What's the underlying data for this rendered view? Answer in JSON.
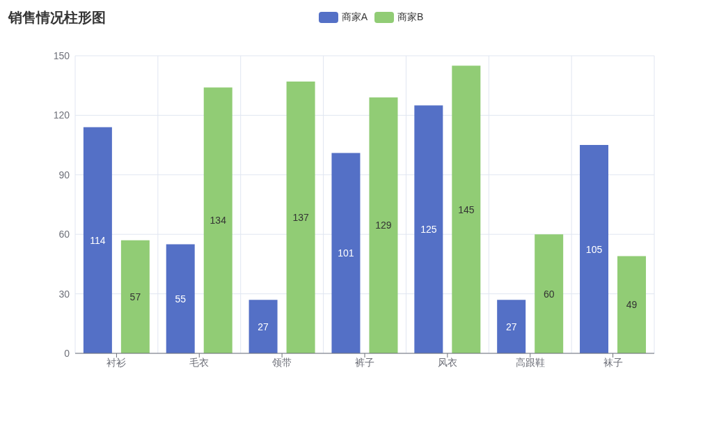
{
  "chart_data": {
    "type": "bar",
    "title": "销售情况柱形图",
    "categories": [
      "衬衫",
      "毛衣",
      "领带",
      "裤子",
      "风衣",
      "高跟鞋",
      "袜子"
    ],
    "series": [
      {
        "name": "商家A",
        "color": "#5470c6",
        "values": [
          114,
          55,
          27,
          101,
          125,
          27,
          105
        ]
      },
      {
        "name": "商家B",
        "color": "#91cc75",
        "values": [
          57,
          134,
          137,
          129,
          145,
          60,
          49
        ]
      }
    ],
    "ylim": [
      0,
      150
    ],
    "yticks": [
      0,
      30,
      60,
      90,
      120,
      150
    ],
    "grid": true,
    "legend": "top",
    "data_labels": true
  }
}
